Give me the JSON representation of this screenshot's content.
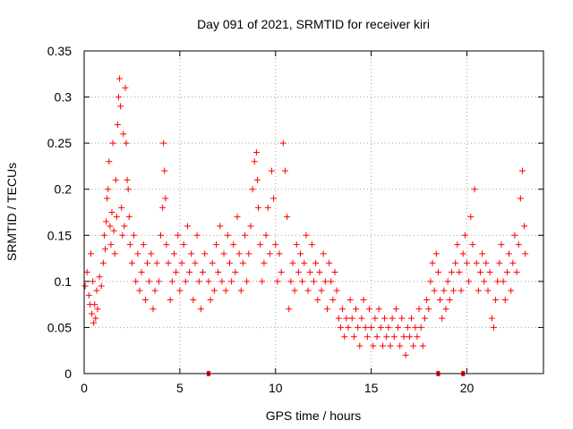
{
  "chart_data": {
    "type": "scatter",
    "title": "Day 091 of 2021, SRMTID for receiver kiri",
    "xlabel": "GPS time / hours",
    "ylabel": "SRMTID / TECUs",
    "xlim": [
      0,
      24
    ],
    "ylim": [
      0,
      0.35
    ],
    "xticks": [
      0,
      5,
      10,
      15,
      20
    ],
    "yticks": [
      0,
      0.05,
      0.1,
      0.15,
      0.2,
      0.25,
      0.3,
      0.35
    ],
    "xtick_labels": [
      "0",
      "5",
      "10",
      "15",
      "20"
    ],
    "ytick_labels": [
      "0",
      "0.05",
      "0.1",
      "0.15",
      "0.2",
      "0.25",
      "0.3",
      "0.35"
    ],
    "grid": true,
    "marker": "+",
    "series": [
      {
        "name": "SRMTID",
        "color": "#ff0000",
        "points": [
          [
            0.05,
            0.095
          ],
          [
            0.15,
            0.11
          ],
          [
            0.25,
            0.085
          ],
          [
            0.3,
            0.075
          ],
          [
            0.35,
            0.13
          ],
          [
            0.4,
            0.065
          ],
          [
            0.45,
            0.1
          ],
          [
            0.5,
            0.055
          ],
          [
            0.55,
            0.075
          ],
          [
            0.6,
            0.06
          ],
          [
            0.65,
            0.09
          ],
          [
            0.7,
            0.07
          ],
          [
            0.8,
            0.105
          ],
          [
            0.9,
            0.095
          ],
          [
            1.0,
            0.12
          ],
          [
            1.05,
            0.15
          ],
          [
            1.1,
            0.135
          ],
          [
            1.15,
            0.165
          ],
          [
            1.2,
            0.19
          ],
          [
            1.25,
            0.2
          ],
          [
            1.3,
            0.23
          ],
          [
            1.35,
            0.16
          ],
          [
            1.4,
            0.14
          ],
          [
            1.45,
            0.175
          ],
          [
            1.5,
            0.25
          ],
          [
            1.55,
            0.155
          ],
          [
            1.6,
            0.13
          ],
          [
            1.65,
            0.21
          ],
          [
            1.7,
            0.17
          ],
          [
            1.75,
            0.27
          ],
          [
            1.8,
            0.3
          ],
          [
            1.85,
            0.32
          ],
          [
            1.9,
            0.29
          ],
          [
            1.95,
            0.18
          ],
          [
            2.0,
            0.15
          ],
          [
            2.05,
            0.26
          ],
          [
            2.1,
            0.16
          ],
          [
            2.15,
            0.31
          ],
          [
            2.2,
            0.25
          ],
          [
            2.25,
            0.21
          ],
          [
            2.3,
            0.2
          ],
          [
            2.35,
            0.17
          ],
          [
            2.4,
            0.14
          ],
          [
            2.5,
            0.12
          ],
          [
            2.6,
            0.15
          ],
          [
            2.7,
            0.1
          ],
          [
            2.8,
            0.13
          ],
          [
            2.9,
            0.09
          ],
          [
            3.0,
            0.11
          ],
          [
            3.1,
            0.14
          ],
          [
            3.2,
            0.08
          ],
          [
            3.3,
            0.12
          ],
          [
            3.4,
            0.1
          ],
          [
            3.5,
            0.13
          ],
          [
            3.6,
            0.07
          ],
          [
            3.7,
            0.09
          ],
          [
            3.8,
            0.12
          ],
          [
            3.9,
            0.1
          ],
          [
            4.0,
            0.15
          ],
          [
            4.1,
            0.18
          ],
          [
            4.15,
            0.25
          ],
          [
            4.2,
            0.22
          ],
          [
            4.25,
            0.19
          ],
          [
            4.3,
            0.14
          ],
          [
            4.4,
            0.12
          ],
          [
            4.5,
            0.08
          ],
          [
            4.6,
            0.1
          ],
          [
            4.7,
            0.13
          ],
          [
            4.8,
            0.11
          ],
          [
            4.9,
            0.15
          ],
          [
            5.0,
            0.09
          ],
          [
            5.1,
            0.12
          ],
          [
            5.2,
            0.14
          ],
          [
            5.3,
            0.1
          ],
          [
            5.4,
            0.16
          ],
          [
            5.5,
            0.11
          ],
          [
            5.6,
            0.13
          ],
          [
            5.7,
            0.08
          ],
          [
            5.8,
            0.12
          ],
          [
            5.9,
            0.15
          ],
          [
            6.0,
            0.1
          ],
          [
            6.1,
            0.07
          ],
          [
            6.2,
            0.11
          ],
          [
            6.3,
            0.13
          ],
          [
            6.5,
            0.1
          ],
          [
            6.6,
            0.08
          ],
          [
            6.7,
            0.12
          ],
          [
            6.8,
            0.09
          ],
          [
            6.9,
            0.14
          ],
          [
            7.0,
            0.11
          ],
          [
            7.1,
            0.16
          ],
          [
            7.2,
            0.1
          ],
          [
            7.3,
            0.13
          ],
          [
            7.4,
            0.09
          ],
          [
            7.5,
            0.15
          ],
          [
            7.6,
            0.12
          ],
          [
            7.7,
            0.1
          ],
          [
            7.8,
            0.14
          ],
          [
            7.9,
            0.11
          ],
          [
            8.0,
            0.17
          ],
          [
            8.1,
            0.13
          ],
          [
            8.2,
            0.09
          ],
          [
            8.3,
            0.12
          ],
          [
            8.4,
            0.15
          ],
          [
            8.5,
            0.1
          ],
          [
            8.6,
            0.13
          ],
          [
            8.7,
            0.16
          ],
          [
            8.8,
            0.2
          ],
          [
            8.9,
            0.23
          ],
          [
            9.0,
            0.24
          ],
          [
            9.05,
            0.21
          ],
          [
            9.1,
            0.18
          ],
          [
            9.2,
            0.14
          ],
          [
            9.3,
            0.1
          ],
          [
            9.4,
            0.12
          ],
          [
            9.5,
            0.15
          ],
          [
            9.6,
            0.18
          ],
          [
            9.7,
            0.13
          ],
          [
            9.8,
            0.22
          ],
          [
            9.9,
            0.19
          ],
          [
            10.0,
            0.14
          ],
          [
            10.1,
            0.1
          ],
          [
            10.2,
            0.13
          ],
          [
            10.3,
            0.11
          ],
          [
            10.4,
            0.25
          ],
          [
            10.5,
            0.22
          ],
          [
            10.6,
            0.17
          ],
          [
            10.7,
            0.07
          ],
          [
            10.8,
            0.1
          ],
          [
            10.9,
            0.12
          ],
          [
            11.0,
            0.09
          ],
          [
            11.1,
            0.14
          ],
          [
            11.2,
            0.11
          ],
          [
            11.3,
            0.13
          ],
          [
            11.4,
            0.1
          ],
          [
            11.5,
            0.12
          ],
          [
            11.6,
            0.15
          ],
          [
            11.7,
            0.09
          ],
          [
            11.8,
            0.11
          ],
          [
            11.9,
            0.14
          ],
          [
            12.0,
            0.1
          ],
          [
            12.1,
            0.12
          ],
          [
            12.2,
            0.08
          ],
          [
            12.3,
            0.11
          ],
          [
            12.4,
            0.09
          ],
          [
            12.5,
            0.13
          ],
          [
            12.6,
            0.1
          ],
          [
            12.7,
            0.07
          ],
          [
            12.8,
            0.12
          ],
          [
            12.9,
            0.1
          ],
          [
            13.0,
            0.08
          ],
          [
            13.1,
            0.11
          ],
          [
            13.2,
            0.09
          ],
          [
            13.3,
            0.06
          ],
          [
            13.4,
            0.05
          ],
          [
            13.5,
            0.07
          ],
          [
            13.6,
            0.04
          ],
          [
            13.7,
            0.06
          ],
          [
            13.8,
            0.05
          ],
          [
            13.9,
            0.08
          ],
          [
            14.0,
            0.06
          ],
          [
            14.1,
            0.04
          ],
          [
            14.2,
            0.07
          ],
          [
            14.3,
            0.05
          ],
          [
            14.4,
            0.03
          ],
          [
            14.5,
            0.06
          ],
          [
            14.6,
            0.08
          ],
          [
            14.7,
            0.05
          ],
          [
            14.8,
            0.04
          ],
          [
            14.9,
            0.07
          ],
          [
            15.0,
            0.05
          ],
          [
            15.1,
            0.03
          ],
          [
            15.2,
            0.06
          ],
          [
            15.3,
            0.04
          ],
          [
            15.4,
            0.07
          ],
          [
            15.5,
            0.05
          ],
          [
            15.6,
            0.03
          ],
          [
            15.7,
            0.06
          ],
          [
            15.8,
            0.04
          ],
          [
            15.9,
            0.05
          ],
          [
            16.0,
            0.03
          ],
          [
            16.1,
            0.06
          ],
          [
            16.2,
            0.04
          ],
          [
            16.3,
            0.07
          ],
          [
            16.4,
            0.05
          ],
          [
            16.5,
            0.03
          ],
          [
            16.6,
            0.06
          ],
          [
            16.7,
            0.04
          ],
          [
            16.8,
            0.02
          ],
          [
            16.9,
            0.05
          ],
          [
            17.0,
            0.04
          ],
          [
            17.1,
            0.06
          ],
          [
            17.2,
            0.03
          ],
          [
            17.3,
            0.05
          ],
          [
            17.4,
            0.04
          ],
          [
            17.5,
            0.07
          ],
          [
            17.6,
            0.05
          ],
          [
            17.7,
            0.03
          ],
          [
            17.8,
            0.06
          ],
          [
            17.9,
            0.08
          ],
          [
            18.0,
            0.07
          ],
          [
            18.1,
            0.1
          ],
          [
            18.2,
            0.12
          ],
          [
            18.3,
            0.09
          ],
          [
            18.4,
            0.13
          ],
          [
            18.5,
            0.11
          ],
          [
            18.6,
            0.08
          ],
          [
            18.7,
            0.06
          ],
          [
            18.8,
            0.09
          ],
          [
            18.9,
            0.07
          ],
          [
            19.0,
            0.1
          ],
          [
            19.1,
            0.08
          ],
          [
            19.2,
            0.11
          ],
          [
            19.3,
            0.09
          ],
          [
            19.4,
            0.12
          ],
          [
            19.5,
            0.14
          ],
          [
            19.6,
            0.11
          ],
          [
            19.7,
            0.09
          ],
          [
            19.8,
            0.13
          ],
          [
            19.9,
            0.15
          ],
          [
            20.0,
            0.12
          ],
          [
            20.1,
            0.1
          ],
          [
            20.2,
            0.17
          ],
          [
            20.3,
            0.14
          ],
          [
            20.4,
            0.2
          ],
          [
            20.5,
            0.12
          ],
          [
            20.6,
            0.09
          ],
          [
            20.7,
            0.11
          ],
          [
            20.8,
            0.13
          ],
          [
            20.9,
            0.1
          ],
          [
            21.0,
            0.12
          ],
          [
            21.1,
            0.09
          ],
          [
            21.2,
            0.11
          ],
          [
            21.3,
            0.06
          ],
          [
            21.4,
            0.05
          ],
          [
            21.5,
            0.08
          ],
          [
            21.6,
            0.1
          ],
          [
            21.7,
            0.12
          ],
          [
            21.8,
            0.14
          ],
          [
            21.9,
            0.1
          ],
          [
            22.0,
            0.08
          ],
          [
            22.1,
            0.11
          ],
          [
            22.2,
            0.13
          ],
          [
            22.3,
            0.09
          ],
          [
            22.4,
            0.12
          ],
          [
            22.5,
            0.15
          ],
          [
            22.6,
            0.11
          ],
          [
            22.7,
            0.14
          ],
          [
            22.8,
            0.19
          ],
          [
            22.9,
            0.22
          ],
          [
            23.0,
            0.16
          ],
          [
            23.05,
            0.13
          ]
        ]
      }
    ],
    "gap_markers_x": [
      6.5,
      18.5,
      19.8
    ]
  }
}
